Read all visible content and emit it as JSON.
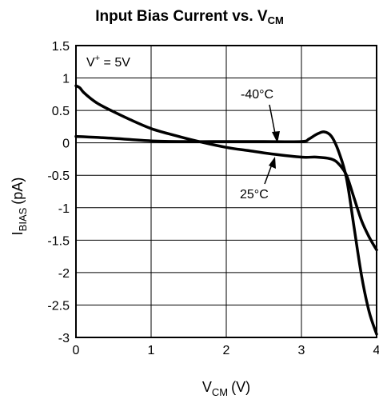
{
  "chart_data": {
    "type": "line",
    "title": "Input Bias Current vs. V",
    "title_sub": "CM",
    "xlabel": "V",
    "xlabel_sub": "CM",
    "xlabel_unit": "(V)",
    "ylabel": "I",
    "ylabel_sub": "BIAS",
    "ylabel_unit": "(pA)",
    "xlim": [
      0,
      4
    ],
    "ylim": [
      -3,
      1.5
    ],
    "xticks": [
      "0",
      "1",
      "2",
      "3",
      "4"
    ],
    "yticks": [
      "1.5",
      "1",
      "0.5",
      "0",
      "-0.5",
      "-1",
      "-1.5",
      "-2",
      "-2.5",
      "-3"
    ],
    "grid": true,
    "annotations": {
      "supply": "V",
      "supply_sup": "+",
      "supply_rest": " = 5V"
    },
    "series": [
      {
        "name": "-40°C",
        "x": [
          0,
          0.5,
          1,
          1.5,
          2,
          2.5,
          3,
          3.1,
          3.2,
          3.3,
          3.4,
          3.5,
          3.6,
          3.7,
          3.8,
          3.9,
          4
        ],
        "y": [
          0.1,
          0.07,
          0.03,
          0.02,
          0.02,
          0.02,
          0.02,
          0.06,
          0.13,
          0.17,
          0.1,
          -0.15,
          -0.55,
          -1.3,
          -2.05,
          -2.6,
          -2.95
        ]
      },
      {
        "name": "25°C",
        "x": [
          0,
          0.05,
          0.1,
          0.2,
          0.3,
          0.5,
          0.7,
          1,
          1.3,
          1.6,
          2,
          2.3,
          2.6,
          3,
          3.2,
          3.4,
          3.5,
          3.6,
          3.7,
          3.8,
          3.9,
          4
        ],
        "y": [
          0.88,
          0.85,
          0.78,
          0.68,
          0.6,
          0.48,
          0.37,
          0.22,
          0.12,
          0.03,
          -0.07,
          -0.12,
          -0.17,
          -0.22,
          -0.22,
          -0.25,
          -0.33,
          -0.5,
          -0.85,
          -1.2,
          -1.45,
          -1.65
        ]
      }
    ]
  }
}
